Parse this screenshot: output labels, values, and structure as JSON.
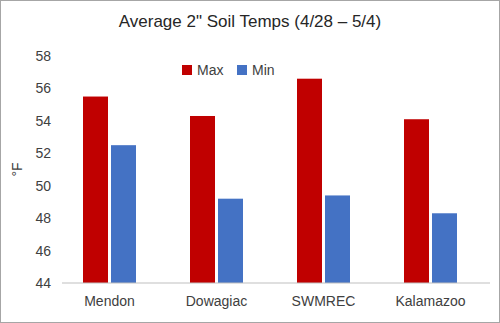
{
  "chart_data": {
    "type": "bar",
    "title": "Average 2\" Soil Temps (4/28 – 5/4)",
    "y_label": "°F",
    "categories": [
      "Mendon",
      "Dowagiac",
      "SWMREC",
      "Kalamazoo"
    ],
    "series": [
      {
        "name": "Max",
        "color": "#c00000",
        "values": [
          55.5,
          54.3,
          56.6,
          54.1
        ]
      },
      {
        "name": "Min",
        "color": "#4472c4",
        "values": [
          52.5,
          49.2,
          49.4,
          48.3
        ]
      }
    ],
    "ylim": [
      44,
      58
    ],
    "yticks": [
      44,
      46,
      48,
      50,
      52,
      54,
      56,
      58
    ],
    "grid": false,
    "legend": "top"
  }
}
